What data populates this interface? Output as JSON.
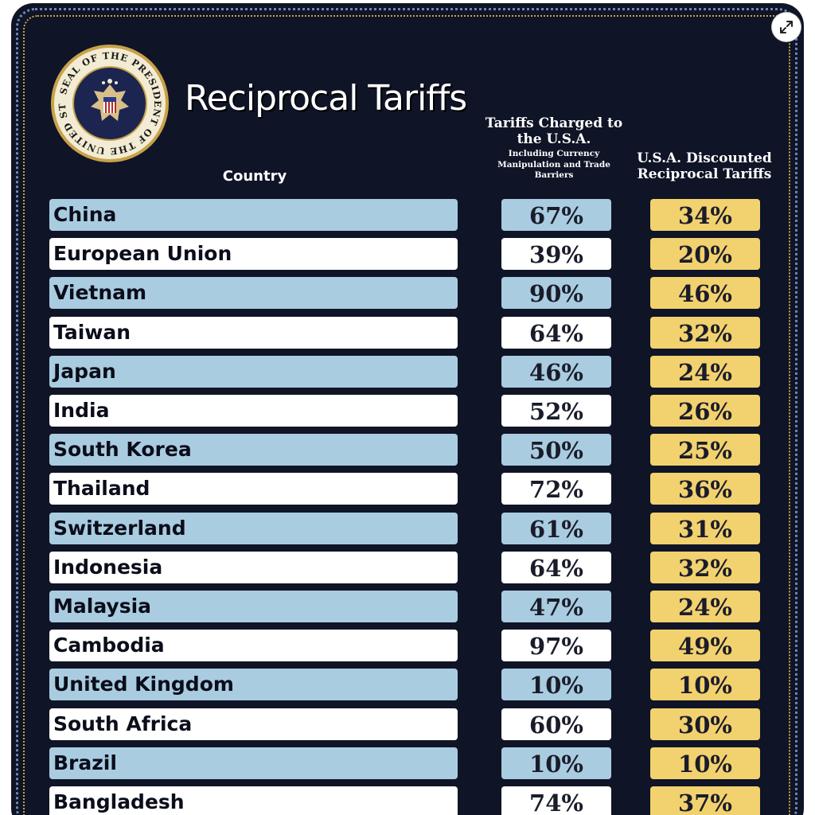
{
  "header": {
    "title": "Reciprocal Tariffs",
    "col_country": "Country",
    "col_charged_main": "Tariffs Charged to the U.S.A.",
    "col_charged_sub": "Including Currency Manipulation and Trade Barriers",
    "col_reciprocal": "U.S.A. Discounted Reciprocal Tariffs"
  },
  "seal": {
    "text": "SEAL OF THE PRESIDENT OF THE UNITED STATES"
  },
  "rows": [
    {
      "country": "China",
      "charged": "67%",
      "reciprocal": "34%"
    },
    {
      "country": "European Union",
      "charged": "39%",
      "reciprocal": "20%"
    },
    {
      "country": "Vietnam",
      "charged": "90%",
      "reciprocal": "46%"
    },
    {
      "country": "Taiwan",
      "charged": "64%",
      "reciprocal": "32%"
    },
    {
      "country": "Japan",
      "charged": "46%",
      "reciprocal": "24%"
    },
    {
      "country": "India",
      "charged": "52%",
      "reciprocal": "26%"
    },
    {
      "country": "South Korea",
      "charged": "50%",
      "reciprocal": "25%"
    },
    {
      "country": "Thailand",
      "charged": "72%",
      "reciprocal": "36%"
    },
    {
      "country": "Switzerland",
      "charged": "61%",
      "reciprocal": "31%"
    },
    {
      "country": "Indonesia",
      "charged": "64%",
      "reciprocal": "32%"
    },
    {
      "country": "Malaysia",
      "charged": "47%",
      "reciprocal": "24%"
    },
    {
      "country": "Cambodia",
      "charged": "97%",
      "reciprocal": "49%"
    },
    {
      "country": "United Kingdom",
      "charged": "10%",
      "reciprocal": "10%"
    },
    {
      "country": "South Africa",
      "charged": "60%",
      "reciprocal": "30%"
    },
    {
      "country": "Brazil",
      "charged": "10%",
      "reciprocal": "10%"
    },
    {
      "country": "Bangladesh",
      "charged": "74%",
      "reciprocal": "37%"
    }
  ],
  "icons": {
    "expand": "expand-icon",
    "seal": "presidential-seal-icon"
  },
  "colors": {
    "background": "#0f1426",
    "row_blue": "#a9cce0",
    "row_white": "#ffffff",
    "reciprocal_gold": "#f2d16f"
  }
}
